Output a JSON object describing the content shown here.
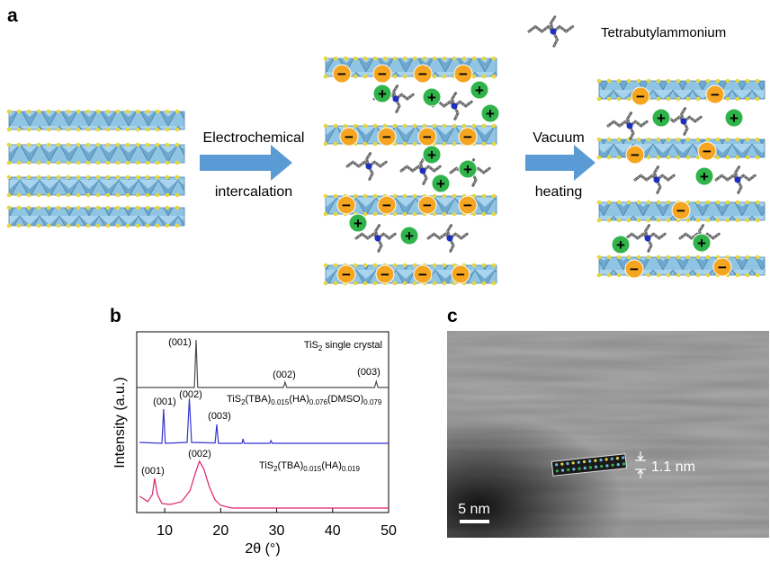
{
  "panel_a": {
    "letter": "a",
    "legend_label": "Tetrabutylammonium",
    "step1": [
      "Electrochemical",
      "intercalation"
    ],
    "step2": [
      "Vacuum",
      "heating"
    ],
    "anion_sign": "−",
    "cation_sign": "+"
  },
  "chart_data": {
    "type": "line",
    "letter": "b",
    "xlabel": "2θ (°)",
    "ylabel": "Intensity (a.u.)",
    "xlim": [
      5,
      50
    ],
    "xticks": [
      10,
      20,
      30,
      40,
      50
    ],
    "ylim": [
      0,
      100
    ],
    "series": [
      {
        "name": [
          "TiS",
          "2",
          " single crystal"
        ],
        "color": "#4d4d4d",
        "peak_labels": [
          "(001)",
          "(002)",
          "(003)"
        ],
        "x": [
          5,
          15.3,
          15.6,
          15.9,
          31.2,
          31.5,
          31.8,
          47.5,
          47.8,
          48.1,
          50
        ],
        "values": [
          69.2,
          69.2,
          95.5,
          69.2,
          69.2,
          72.1,
          69.2,
          69.2,
          72.6,
          69.2,
          69.2
        ]
      },
      {
        "name": [
          "TiS",
          "2",
          "(TBA)",
          "0.015",
          "(HA)",
          "0.076",
          "(DMSO)",
          "0.079"
        ],
        "color": "#3535d0",
        "peak_labels": [
          "(001)",
          "(002)",
          "(003)"
        ],
        "x": [
          5.5,
          9.5,
          9.8,
          10.1,
          14.0,
          14.4,
          14.8,
          19.0,
          19.3,
          19.6,
          23.8,
          24,
          24.2,
          28.8,
          29,
          29.2,
          50
        ],
        "values": [
          38.8,
          38.3,
          57.2,
          38.3,
          38.8,
          63.2,
          38.8,
          38.5,
          48.8,
          38.3,
          38.3,
          40.8,
          38.3,
          38.3,
          39.8,
          38.3,
          38.3
        ]
      },
      {
        "name": [
          "TiS",
          "2",
          "(TBA)",
          "0.015",
          "(HA)",
          "0.019"
        ],
        "color": "#e0226e",
        "peak_labels": [
          "(001)",
          "(002)"
        ],
        "x": [
          5.5,
          7,
          7.8,
          8.2,
          8.7,
          9.5,
          11,
          13,
          14.5,
          15.5,
          16.2,
          17,
          18,
          19,
          20,
          22,
          50
        ],
        "values": [
          9,
          6,
          10,
          18.9,
          10,
          5,
          4.5,
          6,
          12,
          22,
          28.4,
          24,
          14,
          7,
          4,
          2.5,
          2.5
        ]
      }
    ]
  },
  "panel_c": {
    "letter": "c",
    "scale_label": "5 nm",
    "spacing_label": "1.1 nm"
  }
}
